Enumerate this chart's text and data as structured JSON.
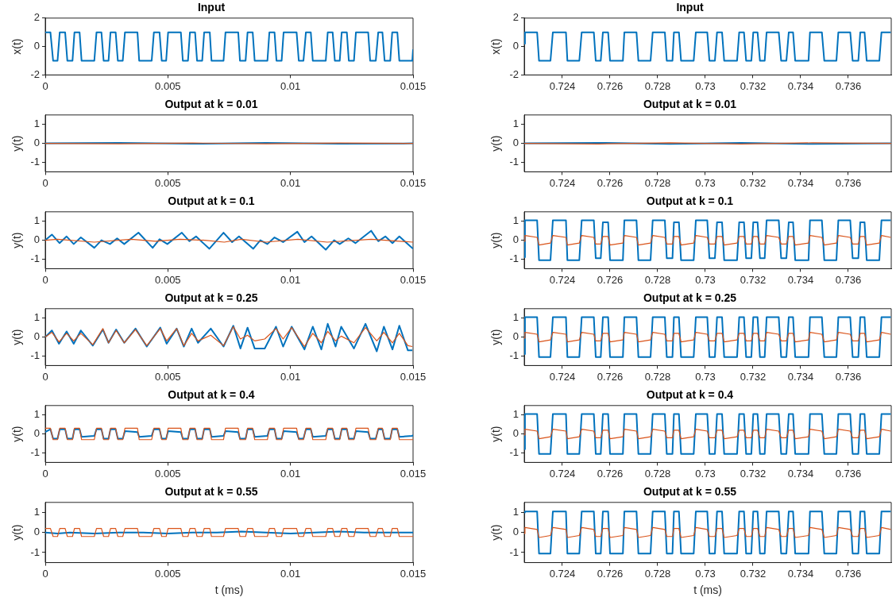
{
  "chart_data": [
    {
      "type": "line",
      "title": "Input",
      "ylabel": "x(t)",
      "xlim": [
        0,
        0.015
      ],
      "xticks": [
        0,
        0.005,
        0.01,
        0.015
      ],
      "ylim": [
        -2,
        2
      ],
      "yticks": [
        -2,
        0,
        2
      ],
      "x": [
        0,
        0.00021,
        0.00032,
        0.0005,
        0.00059,
        0.00081,
        0.0009,
        0.00111,
        0.00119,
        0.0014,
        0.00148,
        0.002,
        0.00209,
        0.00229,
        0.00238,
        0.00258,
        0.00266,
        0.00287,
        0.00296,
        0.00316,
        0.00325,
        0.00376,
        0.00383,
        0.00434,
        0.00443,
        0.00466,
        0.00475,
        0.00493,
        0.00501,
        0.00553,
        0.00561,
        0.00582,
        0.0059,
        0.00611,
        0.00619,
        0.0064,
        0.00648,
        0.00671,
        0.00678,
        0.00727,
        0.00735,
        0.00787,
        0.00794,
        0.00817,
        0.00825,
        0.00846,
        0.00854,
        0.00906,
        0.00914,
        0.00935,
        0.00943,
        0.00964,
        0.00972,
        0.01025,
        0.01034,
        0.01053,
        0.01063,
        0.01083,
        0.01091,
        0.01144,
        0.01152,
        0.01172,
        0.01181,
        0.01201,
        0.01209,
        0.0123,
        0.01238,
        0.01259,
        0.01267,
        0.01317,
        0.01325,
        0.01348,
        0.01358,
        0.01375,
        0.01384,
        0.01407,
        0.01415,
        0.01436,
        0.01444,
        0.01497,
        0.015
      ],
      "series": [
        {
          "color": "#0072bd",
          "values": [
            1,
            1,
            -1,
            -1,
            1,
            1,
            -1,
            -1,
            1,
            1,
            -1,
            -1,
            1,
            1,
            -1,
            -1,
            1,
            1,
            -1,
            -1,
            1,
            1,
            -1,
            -1,
            1,
            1,
            -1,
            -1,
            1,
            1,
            -1,
            -1,
            1,
            1,
            -1,
            -1,
            1,
            1,
            -1,
            -1,
            1,
            1,
            -1,
            -1,
            1,
            1,
            -1,
            -1,
            1,
            1,
            -1,
            -1,
            1,
            1,
            -1,
            -1,
            1,
            1,
            -1,
            -1,
            1,
            1,
            -1,
            -1,
            1,
            1,
            -1,
            -1,
            1,
            1,
            -1,
            -1,
            1,
            1,
            -1,
            -1,
            1,
            1,
            -1,
            -1,
            -0.2
          ]
        }
      ]
    },
    {
      "type": "line",
      "title": "Input",
      "ylabel": "x(t)",
      "xlim": [
        0.7224,
        0.7378
      ],
      "xticks": [
        0.724,
        0.726,
        0.728,
        0.73,
        0.732,
        0.734,
        0.736
      ],
      "ylim": [
        -2,
        2
      ],
      "yticks": [
        -2,
        0,
        2
      ],
      "x": [
        0.7224,
        0.72243,
        0.72294,
        0.72302,
        0.7235,
        0.7236,
        0.72415,
        0.72421,
        0.72471,
        0.72481,
        0.72532,
        0.7254,
        0.72561,
        0.7257,
        0.72592,
        0.726,
        0.72654,
        0.7266,
        0.72711,
        0.72719,
        0.7277,
        0.72779,
        0.7283,
        0.72838,
        0.72862,
        0.72868,
        0.72889,
        0.72898,
        0.72951,
        0.7296,
        0.73008,
        0.73017,
        0.7304,
        0.73049,
        0.7307,
        0.73079,
        0.73133,
        0.73142,
        0.73162,
        0.73171,
        0.73193,
        0.73201,
        0.73219,
        0.73229,
        0.73249,
        0.73257,
        0.73308,
        0.73318,
        0.7334,
        0.7335,
        0.73368,
        0.73377,
        0.73433,
        0.73439,
        0.73489,
        0.73499,
        0.7355,
        0.73558,
        0.73608,
        0.73618,
        0.73642,
        0.7365,
        0.73668,
        0.73677,
        0.7373,
        0.73739,
        0.73778
      ],
      "series": [
        {
          "color": "#0072bd",
          "values": [
            0.2,
            1,
            1,
            -1,
            -1,
            1,
            1,
            -1,
            -1,
            1,
            1,
            -1,
            -1,
            1,
            1,
            -1,
            -1,
            1,
            1,
            -1,
            -1,
            1,
            1,
            -1,
            -1,
            1,
            1,
            -1,
            -1,
            1,
            1,
            -1,
            -1,
            1,
            1,
            -1,
            -1,
            1,
            1,
            -1,
            -1,
            1,
            1,
            -1,
            -1,
            1,
            1,
            -1,
            -1,
            1,
            1,
            -1,
            -1,
            1,
            1,
            -1,
            -1,
            1,
            1,
            -1,
            -1,
            1,
            1,
            -1,
            -1,
            1,
            1
          ]
        }
      ]
    },
    {
      "type": "line",
      "title": "Output at k = 0.01",
      "ylabel": "y(t)",
      "xlim": [
        0,
        0.015
      ],
      "xticks": [
        0,
        0.005,
        0.01,
        0.015
      ],
      "ylim": [
        -1.5,
        1.5
      ],
      "yticks": [
        -1,
        0,
        1
      ],
      "x": [
        0,
        0.003,
        0.006,
        0.009,
        0.012,
        0.015
      ],
      "series": [
        {
          "color": "#0072bd",
          "values": [
            0,
            0.02,
            -0.02,
            0.02,
            -0.02,
            0
          ]
        },
        {
          "color": "#d95319",
          "values": [
            0,
            -0.02,
            0.02,
            -0.02,
            0.02,
            0
          ]
        }
      ]
    },
    {
      "type": "line",
      "title": "Output at k = 0.01",
      "ylabel": "y(t)",
      "xlim": [
        0.7224,
        0.7378
      ],
      "xticks": [
        0.724,
        0.726,
        0.728,
        0.73,
        0.732,
        0.734,
        0.736
      ],
      "ylim": [
        -1.5,
        1.5
      ],
      "yticks": [
        -1,
        0,
        1
      ],
      "x": [
        0.7224,
        0.7255,
        0.7285,
        0.7315,
        0.7345,
        0.7378
      ],
      "series": [
        {
          "color": "#0072bd",
          "values": [
            0,
            0.03,
            -0.03,
            0.03,
            -0.03,
            0
          ]
        },
        {
          "color": "#d95319",
          "values": [
            0,
            -0.03,
            0.03,
            -0.03,
            0.03,
            0
          ]
        }
      ]
    },
    {
      "type": "line",
      "title": "Output at k = 0.1",
      "ylabel": "y(t)",
      "xlim": [
        0,
        0.015
      ],
      "xticks": [
        0,
        0.005,
        0.01,
        0.015
      ],
      "ylim": [
        -1.5,
        1.5
      ],
      "yticks": [
        -1,
        0,
        1
      ],
      "x": [
        0,
        0.00027,
        0.00058,
        0.00087,
        0.00116,
        0.00145,
        0.002,
        0.00229,
        0.00264,
        0.00293,
        0.00322,
        0.0038,
        0.00438,
        0.00466,
        0.00498,
        0.00557,
        0.00588,
        0.00615,
        0.00669,
        0.00727,
        0.00762,
        0.0079,
        0.00848,
        0.00877,
        0.00906,
        0.00935,
        0.0097,
        0.01028,
        0.01057,
        0.01086,
        0.01144,
        0.01178,
        0.01201,
        0.01236,
        0.01265,
        0.01329,
        0.01358,
        0.01387,
        0.01416,
        0.01444,
        0.015
      ],
      "series": [
        {
          "color": "#0072bd",
          "values": [
            0,
            0.3,
            -0.15,
            0.2,
            -0.2,
            0.15,
            -0.4,
            0,
            -0.2,
            0.1,
            -0.2,
            0.4,
            -0.4,
            0.05,
            -0.2,
            0.4,
            -0.05,
            0.2,
            -0.45,
            0.4,
            -0.1,
            0.2,
            -0.45,
            0,
            -0.2,
            0.15,
            -0.1,
            0.45,
            -0.1,
            0.2,
            -0.5,
            0,
            -0.2,
            0.1,
            -0.15,
            0.5,
            -0.05,
            0.2,
            -0.15,
            0.2,
            -0.45
          ]
        },
        {
          "color": "#d95319",
          "x": [
            0,
            0.0005,
            0.002,
            0.0035,
            0.0045,
            0.0055,
            0.0065,
            0.0073,
            0.008,
            0.009,
            0.0103,
            0.0115,
            0.0133,
            0.015
          ],
          "values": [
            0,
            0.05,
            -0.1,
            0.05,
            -0.05,
            0.05,
            0,
            -0.1,
            0.05,
            -0.1,
            0.05,
            -0.1,
            0.05,
            -0.1
          ]
        }
      ]
    },
    {
      "type": "line",
      "title": "Output at k = 0.1",
      "ylabel": "y(t)",
      "xlim": [
        0.7224,
        0.7378
      ],
      "xticks": [
        0.724,
        0.726,
        0.728,
        0.73,
        0.732,
        0.734,
        0.736
      ],
      "ylim": [
        -1.5,
        1.5
      ],
      "yticks": [
        -1,
        0,
        1
      ],
      "x": [
        0.7224,
        0.72243,
        0.72294,
        0.72302,
        0.7235,
        0.7236,
        0.72415,
        0.72421,
        0.72471,
        0.72481,
        0.72532,
        0.7254,
        0.72561,
        0.7257,
        0.72592,
        0.726,
        0.72654,
        0.7266,
        0.72711,
        0.72719,
        0.7277,
        0.72779,
        0.7283,
        0.72838,
        0.72862,
        0.72868,
        0.72889,
        0.72898,
        0.72951,
        0.7296,
        0.73008,
        0.73017,
        0.7304,
        0.73049,
        0.7307,
        0.73079,
        0.73133,
        0.73142,
        0.73162,
        0.73171,
        0.73193,
        0.73201,
        0.73219,
        0.73229,
        0.73249,
        0.73257,
        0.73308,
        0.73318,
        0.7334,
        0.7335,
        0.73368,
        0.73377,
        0.73433,
        0.73439,
        0.73489,
        0.73499,
        0.7355,
        0.73558,
        0.73608,
        0.73618,
        0.73642,
        0.7365,
        0.73668,
        0.73677,
        0.7373,
        0.73739,
        0.73778
      ],
      "series": [
        {
          "color": "#0072bd",
          "values": [
            -0.9,
            1.05,
            1.05,
            -1.05,
            -1.05,
            1.05,
            1.05,
            -1.05,
            -1.05,
            1.05,
            1.05,
            -0.95,
            -0.95,
            0.95,
            0.95,
            -1.05,
            -1.05,
            1.05,
            1.05,
            -1.05,
            -1.05,
            1.05,
            1.05,
            -0.95,
            -0.95,
            0.95,
            0.95,
            -1.05,
            -1.05,
            1.05,
            1.05,
            -0.95,
            -0.95,
            0.95,
            0.95,
            -1.05,
            -1.05,
            0.95,
            0.95,
            -0.95,
            -0.95,
            0.95,
            0.95,
            -0.95,
            -0.95,
            1.05,
            1.05,
            -0.95,
            -0.95,
            0.95,
            0.95,
            -1.05,
            -1.05,
            1.05,
            1.05,
            -1.05,
            -1.05,
            1.05,
            1.05,
            -0.95,
            -0.95,
            0.95,
            0.95,
            -1.05,
            -1.05,
            1.05,
            1.05
          ]
        },
        {
          "color": "#d95319",
          "values": [
            -0.05,
            0.25,
            0.15,
            -0.25,
            -0.15,
            0.25,
            0.15,
            -0.25,
            -0.15,
            0.25,
            0.15,
            -0.2,
            -0.2,
            0.2,
            0.2,
            -0.25,
            -0.15,
            0.25,
            0.15,
            -0.25,
            -0.15,
            0.25,
            0.15,
            -0.2,
            -0.2,
            0.2,
            0.2,
            -0.25,
            -0.15,
            0.25,
            0.15,
            -0.2,
            -0.2,
            0.2,
            0.2,
            -0.25,
            -0.15,
            0.2,
            0.2,
            -0.2,
            -0.2,
            0.2,
            0.2,
            -0.2,
            -0.2,
            0.25,
            0.15,
            -0.2,
            -0.2,
            0.2,
            0.2,
            -0.25,
            -0.15,
            0.25,
            0.15,
            -0.25,
            -0.15,
            0.25,
            0.15,
            -0.2,
            -0.2,
            0.2,
            0.2,
            -0.25,
            -0.15,
            0.25,
            0.15
          ]
        }
      ]
    },
    {
      "type": "line",
      "title": "Output at k = 0.25",
      "ylabel": "y(t)",
      "xlim": [
        0,
        0.015
      ],
      "xticks": [
        0,
        0.005,
        0.01,
        0.015
      ],
      "ylim": [
        -1.5,
        1.5
      ],
      "yticks": [
        -1,
        0,
        1
      ],
      "x": [
        0,
        0.00027,
        0.00056,
        0.00087,
        0.00116,
        0.00145,
        0.00194,
        0.00235,
        0.00258,
        0.00289,
        0.00322,
        0.00368,
        0.00414,
        0.00469,
        0.00495,
        0.00536,
        0.00565,
        0.00597,
        0.00623,
        0.00675,
        0.00727,
        0.00767,
        0.00796,
        0.00825,
        0.00854,
        0.00895,
        0.00941,
        0.0097,
        0.01005,
        0.01057,
        0.01091,
        0.01126,
        0.01152,
        0.01184,
        0.01207,
        0.01259,
        0.01306,
        0.01352,
        0.01381,
        0.01416,
        0.01444,
        0.01479,
        0.01497
      ],
      "series": [
        {
          "color": "#0072bd",
          "values": [
            0,
            0.35,
            -0.35,
            0.3,
            -0.35,
            0.35,
            -0.45,
            0.4,
            -0.3,
            0.4,
            -0.3,
            0.45,
            -0.5,
            0.5,
            -0.35,
            0.45,
            -0.5,
            0.45,
            -0.3,
            0.45,
            -0.5,
            0.6,
            -0.6,
            0.5,
            -0.6,
            -0.6,
            0.55,
            -0.5,
            0.55,
            -0.65,
            0.55,
            -0.65,
            0.7,
            -0.5,
            0.55,
            -0.6,
            0.7,
            -0.75,
            0.55,
            -0.65,
            0.6,
            -0.7,
            -0.7
          ]
        },
        {
          "color": "#d95319",
          "values": [
            0,
            0.25,
            -0.25,
            0.2,
            -0.2,
            0.2,
            -0.4,
            0.45,
            -0.3,
            0.35,
            -0.3,
            0.4,
            -0.45,
            0.45,
            -0.2,
            0.45,
            -0.45,
            0.2,
            -0.2,
            0.1,
            -0.45,
            0.55,
            -0.1,
            0.1,
            -0.2,
            -0.1,
            0.45,
            -0.1,
            0.5,
            -0.5,
            0.2,
            -0.3,
            0.3,
            -0.2,
            0.05,
            -0.3,
            0.5,
            -0.2,
            0.25,
            -0.3,
            0.2,
            -0.45,
            -0.5
          ]
        }
      ]
    },
    {
      "type": "line",
      "title": "Output at k = 0.25",
      "ylabel": "y(t)",
      "xlim": [
        0.7224,
        0.7378
      ],
      "xticks": [
        0.724,
        0.726,
        0.728,
        0.73,
        0.732,
        0.734,
        0.736
      ],
      "ylim": [
        -1.5,
        1.5
      ],
      "yticks": [
        -1,
        0,
        1
      ],
      "x": [
        0.7224,
        0.72243,
        0.72294,
        0.72302,
        0.7235,
        0.7236,
        0.72415,
        0.72421,
        0.72471,
        0.72481,
        0.72532,
        0.7254,
        0.72561,
        0.7257,
        0.72592,
        0.726,
        0.72654,
        0.7266,
        0.72711,
        0.72719,
        0.7277,
        0.72779,
        0.7283,
        0.72838,
        0.72862,
        0.72868,
        0.72889,
        0.72898,
        0.72951,
        0.7296,
        0.73008,
        0.73017,
        0.7304,
        0.73049,
        0.7307,
        0.73079,
        0.73133,
        0.73142,
        0.73162,
        0.73171,
        0.73193,
        0.73201,
        0.73219,
        0.73229,
        0.73249,
        0.73257,
        0.73308,
        0.73318,
        0.7334,
        0.7335,
        0.73368,
        0.73377,
        0.73433,
        0.73439,
        0.73489,
        0.73499,
        0.7355,
        0.73558,
        0.73608,
        0.73618,
        0.73642,
        0.7365,
        0.73668,
        0.73677,
        0.7373,
        0.73739,
        0.73778
      ],
      "series": [
        {
          "color": "#0072bd",
          "values": [
            -0.9,
            1.05,
            1.05,
            -1.05,
            -1.05,
            1.05,
            1.05,
            -1.05,
            -1.05,
            1.05,
            1.05,
            -1.05,
            -1.05,
            1.05,
            1.05,
            -1.05,
            -1.05,
            1.05,
            1.05,
            -1.05,
            -1.05,
            1.05,
            1.05,
            -1.05,
            -1.05,
            1.05,
            1.05,
            -1.05,
            -1.05,
            1.05,
            1.05,
            -1.05,
            -1.05,
            1.05,
            1.05,
            -1.05,
            -1.05,
            1.05,
            1.05,
            -1.05,
            -1.05,
            1.05,
            1.05,
            -1.05,
            -1.05,
            1.05,
            1.05,
            -1.05,
            -1.05,
            1.05,
            1.05,
            -1.05,
            -1.05,
            1.05,
            1.05,
            -1.05,
            -1.05,
            1.05,
            1.05,
            -1.05,
            -1.05,
            1.05,
            1.05,
            -1.05,
            -1.05,
            1.05,
            1.05
          ]
        },
        {
          "color": "#d95319",
          "values": [
            -0.05,
            0.25,
            0.15,
            -0.25,
            -0.15,
            0.25,
            0.15,
            -0.25,
            -0.15,
            0.25,
            0.15,
            -0.2,
            -0.2,
            0.2,
            0.2,
            -0.25,
            -0.15,
            0.25,
            0.15,
            -0.25,
            -0.15,
            0.25,
            0.15,
            -0.2,
            -0.2,
            0.2,
            0.2,
            -0.25,
            -0.15,
            0.25,
            0.15,
            -0.2,
            -0.2,
            0.2,
            0.2,
            -0.25,
            -0.15,
            0.2,
            0.2,
            -0.2,
            -0.2,
            0.2,
            0.2,
            -0.2,
            -0.2,
            0.25,
            0.15,
            -0.2,
            -0.2,
            0.2,
            0.2,
            -0.25,
            -0.15,
            0.25,
            0.15,
            -0.25,
            -0.15,
            0.25,
            0.15,
            -0.2,
            -0.2,
            0.2,
            0.2,
            -0.25,
            -0.15,
            0.25,
            0.15
          ]
        }
      ]
    },
    {
      "type": "line",
      "title": "Output at k = 0.4",
      "ylabel": "y(t)",
      "xlim": [
        0,
        0.015
      ],
      "xticks": [
        0,
        0.005,
        0.01,
        0.015
      ],
      "ylim": [
        -1.5,
        1.5
      ],
      "yticks": [
        -1,
        0,
        1
      ],
      "x": [
        0,
        0.00021,
        0.00032,
        0.0005,
        0.00059,
        0.00081,
        0.0009,
        0.00111,
        0.00119,
        0.0014,
        0.00148,
        0.002,
        0.00209,
        0.00229,
        0.00238,
        0.00258,
        0.00266,
        0.00287,
        0.00296,
        0.00316,
        0.00325,
        0.00376,
        0.00383,
        0.00434,
        0.00443,
        0.00466,
        0.00475,
        0.00493,
        0.00501,
        0.00553,
        0.00561,
        0.00582,
        0.0059,
        0.00611,
        0.00619,
        0.0064,
        0.00648,
        0.00671,
        0.00678,
        0.00727,
        0.00735,
        0.00787,
        0.00794,
        0.00817,
        0.00825,
        0.00846,
        0.00854,
        0.00906,
        0.00914,
        0.00935,
        0.00943,
        0.00964,
        0.00972,
        0.01025,
        0.01034,
        0.01053,
        0.01063,
        0.01083,
        0.01091,
        0.01144,
        0.01152,
        0.01172,
        0.01181,
        0.01201,
        0.01209,
        0.0123,
        0.01238,
        0.01259,
        0.01267,
        0.01317,
        0.01325,
        0.01348,
        0.01358,
        0.01375,
        0.01384,
        0.01407,
        0.01415,
        0.01436,
        0.01444,
        0.01497,
        0.015
      ],
      "series": [
        {
          "color": "#0072bd",
          "values": [
            0.1,
            0.25,
            -0.25,
            -0.25,
            0.25,
            0.25,
            -0.25,
            -0.25,
            0.25,
            0.25,
            -0.15,
            -0.1,
            0.25,
            0.25,
            -0.25,
            -0.25,
            0.25,
            0.25,
            -0.25,
            -0.25,
            0.15,
            0.1,
            -0.15,
            -0.1,
            0.25,
            0.25,
            -0.25,
            -0.25,
            0.15,
            0.1,
            -0.25,
            -0.25,
            0.25,
            0.25,
            -0.25,
            -0.25,
            0.25,
            0.25,
            -0.15,
            -0.1,
            0.15,
            0.1,
            -0.25,
            -0.25,
            0.25,
            0.25,
            -0.15,
            -0.1,
            0.25,
            0.25,
            -0.25,
            -0.25,
            0.15,
            0.1,
            -0.25,
            -0.25,
            0.25,
            0.25,
            -0.15,
            -0.1,
            0.25,
            0.25,
            -0.25,
            -0.25,
            0.25,
            0.25,
            -0.25,
            -0.25,
            0.15,
            0.1,
            -0.25,
            -0.25,
            0.25,
            0.25,
            -0.25,
            -0.25,
            0.25,
            0.25,
            -0.15,
            -0.1,
            -0.05
          ]
        },
        {
          "color": "#d95319",
          "values": [
            0.3,
            0.3,
            -0.3,
            -0.3,
            0.3,
            0.3,
            -0.3,
            -0.3,
            0.3,
            0.3,
            -0.3,
            -0.3,
            0.3,
            0.3,
            -0.3,
            -0.3,
            0.3,
            0.3,
            -0.3,
            -0.3,
            0.3,
            0.3,
            -0.3,
            -0.3,
            0.3,
            0.3,
            -0.3,
            -0.3,
            0.3,
            0.3,
            -0.3,
            -0.3,
            0.3,
            0.3,
            -0.3,
            -0.3,
            0.3,
            0.3,
            -0.3,
            -0.3,
            0.3,
            0.3,
            -0.3,
            -0.3,
            0.3,
            0.3,
            -0.3,
            -0.3,
            0.3,
            0.3,
            -0.3,
            -0.3,
            0.3,
            0.3,
            -0.3,
            -0.3,
            0.3,
            0.3,
            -0.3,
            -0.3,
            0.3,
            0.3,
            -0.3,
            -0.3,
            0.3,
            0.3,
            -0.3,
            -0.3,
            0.3,
            0.3,
            -0.3,
            -0.3,
            0.3,
            0.3,
            -0.3,
            -0.3,
            0.3,
            0.3,
            -0.3,
            -0.3,
            -0.3
          ]
        }
      ]
    },
    {
      "type": "line",
      "title": "Output at k = 0.4",
      "ylabel": "y(t)",
      "xlim": [
        0.7224,
        0.7378
      ],
      "xticks": [
        0.724,
        0.726,
        0.728,
        0.73,
        0.732,
        0.734,
        0.736
      ],
      "ylim": [
        -1.5,
        1.5
      ],
      "yticks": [
        -1,
        0,
        1
      ],
      "x": [
        0.7224,
        0.72243,
        0.72294,
        0.72302,
        0.7235,
        0.7236,
        0.72415,
        0.72421,
        0.72471,
        0.72481,
        0.72532,
        0.7254,
        0.72561,
        0.7257,
        0.72592,
        0.726,
        0.72654,
        0.7266,
        0.72711,
        0.72719,
        0.7277,
        0.72779,
        0.7283,
        0.72838,
        0.72862,
        0.72868,
        0.72889,
        0.72898,
        0.72951,
        0.7296,
        0.73008,
        0.73017,
        0.7304,
        0.73049,
        0.7307,
        0.73079,
        0.73133,
        0.73142,
        0.73162,
        0.73171,
        0.73193,
        0.73201,
        0.73219,
        0.73229,
        0.73249,
        0.73257,
        0.73308,
        0.73318,
        0.7334,
        0.7335,
        0.73368,
        0.73377,
        0.73433,
        0.73439,
        0.73489,
        0.73499,
        0.7355,
        0.73558,
        0.73608,
        0.73618,
        0.73642,
        0.7365,
        0.73668,
        0.73677,
        0.7373,
        0.73739,
        0.73778
      ],
      "series": [
        {
          "color": "#0072bd",
          "values": [
            -0.8,
            1.05,
            1.05,
            -1.05,
            -1.05,
            1.05,
            1.05,
            -1.05,
            -1.05,
            1.05,
            1.05,
            -1.05,
            -1.05,
            1.05,
            1.05,
            -1.05,
            -1.05,
            1.05,
            1.05,
            -1.05,
            -1.05,
            1.05,
            1.05,
            -1.05,
            -1.05,
            1.05,
            1.05,
            -1.05,
            -1.05,
            1.05,
            1.05,
            -1.05,
            -1.05,
            1.05,
            1.05,
            -1.05,
            -1.05,
            1.05,
            1.05,
            -1.05,
            -1.05,
            1.05,
            1.05,
            -1.05,
            -1.05,
            1.05,
            1.05,
            -1.05,
            -1.05,
            1.05,
            1.05,
            -1.05,
            -1.05,
            1.05,
            1.05,
            -1.05,
            -1.05,
            1.05,
            1.05,
            -1.05,
            -1.05,
            1.05,
            1.05,
            -1.05,
            -1.05,
            1.05,
            1.05
          ]
        },
        {
          "color": "#d95319",
          "values": [
            -0.05,
            0.25,
            0.15,
            -0.25,
            -0.15,
            0.25,
            0.15,
            -0.25,
            -0.15,
            0.25,
            0.15,
            -0.2,
            -0.2,
            0.2,
            0.2,
            -0.25,
            -0.15,
            0.25,
            0.15,
            -0.25,
            -0.15,
            0.25,
            0.15,
            -0.2,
            -0.2,
            0.2,
            0.2,
            -0.25,
            -0.15,
            0.25,
            0.15,
            -0.2,
            -0.2,
            0.2,
            0.2,
            -0.25,
            -0.15,
            0.2,
            0.2,
            -0.2,
            -0.2,
            0.2,
            0.2,
            -0.2,
            -0.2,
            0.25,
            0.15,
            -0.2,
            -0.2,
            0.2,
            0.2,
            -0.25,
            -0.15,
            0.25,
            0.15,
            -0.25,
            -0.15,
            0.25,
            0.15,
            -0.2,
            -0.2,
            0.2,
            0.2,
            -0.25,
            -0.15,
            0.25,
            0.15
          ]
        }
      ]
    },
    {
      "type": "line",
      "title": "Output at k = 0.55",
      "ylabel": "y(t)",
      "xlabel": "t (ms)",
      "xlim": [
        0,
        0.015
      ],
      "xticks": [
        0,
        0.005,
        0.01,
        0.015
      ],
      "ylim": [
        -1.5,
        1.5
      ],
      "yticks": [
        -1,
        0,
        1
      ],
      "x": [
        0,
        0.00021,
        0.00032,
        0.0005,
        0.00059,
        0.00081,
        0.0009,
        0.00111,
        0.00119,
        0.0014,
        0.00148,
        0.002,
        0.00209,
        0.00229,
        0.00238,
        0.00258,
        0.00266,
        0.00287,
        0.00296,
        0.00316,
        0.00325,
        0.00376,
        0.00383,
        0.00434,
        0.00443,
        0.00466,
        0.00475,
        0.00493,
        0.00501,
        0.00553,
        0.00561,
        0.00582,
        0.0059,
        0.00611,
        0.00619,
        0.0064,
        0.00648,
        0.00671,
        0.00678,
        0.00727,
        0.00735,
        0.00787,
        0.00794,
        0.00817,
        0.00825,
        0.00846,
        0.00854,
        0.00906,
        0.00914,
        0.00935,
        0.00943,
        0.00964,
        0.00972,
        0.01025,
        0.01034,
        0.01053,
        0.01063,
        0.01083,
        0.01091,
        0.01144,
        0.01152,
        0.01172,
        0.01181,
        0.01201,
        0.01209,
        0.0123,
        0.01238,
        0.01259,
        0.01267,
        0.01317,
        0.01325,
        0.01348,
        0.01358,
        0.01375,
        0.01384,
        0.01407,
        0.01415,
        0.01436,
        0.01444,
        0.01497,
        0.015
      ],
      "series": [
        {
          "color": "#0072bd",
          "x": [
            0,
            0.0005,
            0.001,
            0.002,
            0.003,
            0.004,
            0.005,
            0.006,
            0.007,
            0.008,
            0.009,
            0.01,
            0.011,
            0.012,
            0.013,
            0.014,
            0.015
          ],
          "values": [
            0,
            -0.05,
            0,
            -0.05,
            0,
            0,
            -0.05,
            0,
            0,
            0.05,
            0,
            -0.05,
            0,
            0.05,
            0,
            0,
            0
          ]
        },
        {
          "color": "#d95319",
          "values": [
            0.2,
            0.2,
            -0.2,
            -0.2,
            0.2,
            0.2,
            -0.2,
            -0.2,
            0.2,
            0.2,
            -0.2,
            -0.2,
            0.2,
            0.2,
            -0.2,
            -0.2,
            0.2,
            0.2,
            -0.2,
            -0.2,
            0.2,
            0.2,
            -0.2,
            -0.2,
            0.2,
            0.2,
            -0.2,
            -0.2,
            0.2,
            0.2,
            -0.2,
            -0.2,
            0.2,
            0.2,
            -0.2,
            -0.2,
            0.2,
            0.2,
            -0.2,
            -0.2,
            0.2,
            0.2,
            -0.2,
            -0.2,
            0.2,
            0.2,
            -0.2,
            -0.2,
            0.2,
            0.2,
            -0.2,
            -0.2,
            0.2,
            0.2,
            -0.2,
            -0.2,
            0.2,
            0.2,
            -0.2,
            -0.2,
            0.2,
            0.2,
            -0.2,
            -0.2,
            0.2,
            0.2,
            -0.2,
            -0.2,
            0.2,
            0.2,
            -0.2,
            -0.2,
            0.2,
            0.2,
            -0.2,
            -0.2,
            0.2,
            0.2,
            -0.2,
            -0.2,
            -0.2
          ]
        }
      ]
    },
    {
      "type": "line",
      "title": "Output at k = 0.55",
      "ylabel": "y(t)",
      "xlabel": "t (ms)",
      "xlim": [
        0.7224,
        0.7378
      ],
      "xticks": [
        0.724,
        0.726,
        0.728,
        0.73,
        0.732,
        0.734,
        0.736
      ],
      "ylim": [
        -1.5,
        1.5
      ],
      "yticks": [
        -1,
        0,
        1
      ],
      "x": [
        0.7224,
        0.72243,
        0.72294,
        0.72302,
        0.7235,
        0.7236,
        0.72415,
        0.72421,
        0.72471,
        0.72481,
        0.72532,
        0.7254,
        0.72561,
        0.7257,
        0.72592,
        0.726,
        0.72654,
        0.7266,
        0.72711,
        0.72719,
        0.7277,
        0.72779,
        0.7283,
        0.72838,
        0.72862,
        0.72868,
        0.72889,
        0.72898,
        0.72951,
        0.7296,
        0.73008,
        0.73017,
        0.7304,
        0.73049,
        0.7307,
        0.73079,
        0.73133,
        0.73142,
        0.73162,
        0.73171,
        0.73193,
        0.73201,
        0.73219,
        0.73229,
        0.73249,
        0.73257,
        0.73308,
        0.73318,
        0.7334,
        0.7335,
        0.73368,
        0.73377,
        0.73433,
        0.73439,
        0.73489,
        0.73499,
        0.7355,
        0.73558,
        0.73608,
        0.73618,
        0.73642,
        0.7365,
        0.73668,
        0.73677,
        0.7373,
        0.73739,
        0.73778
      ],
      "series": [
        {
          "color": "#0072bd",
          "values": [
            1,
            1.05,
            1.05,
            -1.05,
            -1.05,
            1.05,
            1.05,
            -1.05,
            -1.05,
            1.05,
            1.05,
            -1.05,
            -1.05,
            1.05,
            1.05,
            -1.05,
            -1.05,
            1.05,
            1.05,
            -1.05,
            -1.05,
            1.05,
            1.05,
            -1.05,
            -1.05,
            1.05,
            1.05,
            -1.05,
            -1.05,
            1.05,
            1.05,
            -1.05,
            -1.05,
            1.05,
            1.05,
            -1.05,
            -1.05,
            1.05,
            1.05,
            -1.05,
            -1.05,
            1.05,
            1.05,
            -1.05,
            -1.05,
            1.05,
            1.05,
            -1.05,
            -1.05,
            1.05,
            1.05,
            -1.05,
            -1.05,
            1.05,
            1.05,
            -1.05,
            -1.05,
            1.05,
            1.05,
            -1.05,
            -1.05,
            1.05,
            1.05,
            -1.05,
            -1.05,
            1.05,
            1.05
          ]
        },
        {
          "color": "#d95319",
          "values": [
            -0.05,
            0.25,
            0.15,
            -0.25,
            -0.15,
            0.25,
            0.15,
            -0.25,
            -0.15,
            0.25,
            0.15,
            -0.2,
            -0.2,
            0.2,
            0.2,
            -0.25,
            -0.15,
            0.25,
            0.15,
            -0.25,
            -0.15,
            0.25,
            0.15,
            -0.2,
            -0.2,
            0.2,
            0.2,
            -0.25,
            -0.15,
            0.25,
            0.15,
            -0.2,
            -0.2,
            0.2,
            0.2,
            -0.25,
            -0.15,
            0.2,
            0.2,
            -0.2,
            -0.2,
            0.2,
            0.2,
            -0.2,
            -0.2,
            0.25,
            0.15,
            -0.2,
            -0.2,
            0.2,
            0.2,
            -0.25,
            -0.15,
            0.25,
            0.15,
            -0.25,
            -0.15,
            0.25,
            0.15,
            -0.2,
            -0.2,
            0.2,
            0.2,
            -0.25,
            -0.15,
            0.25,
            0.15
          ]
        }
      ]
    }
  ]
}
